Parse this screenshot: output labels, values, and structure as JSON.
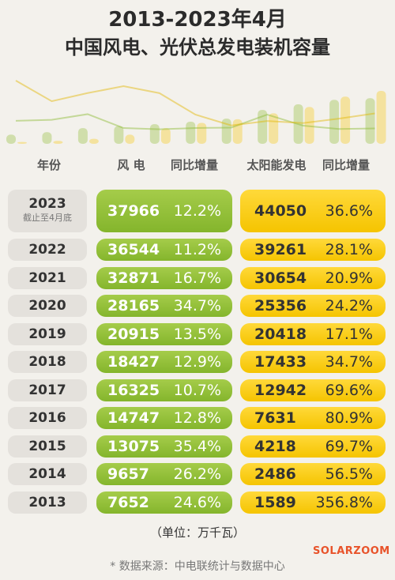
{
  "title_line1": "2013-2023年4月",
  "title_line2": "中国风电、光伏总发电装机容量",
  "headers": {
    "year": "年份",
    "wind": "风 电",
    "wind_yoy": "同比增量",
    "solar": "太阳能发电",
    "solar_yoy": "同比增量"
  },
  "unit": "（单位：万千瓦）",
  "brand": "SOLARZOOM",
  "source": "* 数据来源：中电联统计与数据中心",
  "colors": {
    "wind": "#8bbb34",
    "solar": "#f7c700",
    "year_box": "#e4e1dc",
    "background": "#f3f1ec"
  },
  "chart_data": {
    "type": "table",
    "columns": [
      "年份",
      "风 电",
      "同比增量",
      "太阳能发电",
      "同比增量"
    ],
    "rows": [
      {
        "year": "2023",
        "note": "截止至4月底",
        "wind": 37966,
        "wind_yoy": "12.2%",
        "solar": 44050,
        "solar_yoy": "36.6%"
      },
      {
        "year": "2022",
        "wind": 36544,
        "wind_yoy": "11.2%",
        "solar": 39261,
        "solar_yoy": "28.1%"
      },
      {
        "year": "2021",
        "wind": 32871,
        "wind_yoy": "16.7%",
        "solar": 30654,
        "solar_yoy": "20.9%"
      },
      {
        "year": "2020",
        "wind": 28165,
        "wind_yoy": "34.7%",
        "solar": 25356,
        "solar_yoy": "24.2%"
      },
      {
        "year": "2019",
        "wind": 20915,
        "wind_yoy": "13.5%",
        "solar": 20418,
        "solar_yoy": "17.1%"
      },
      {
        "year": "2018",
        "wind": 18427,
        "wind_yoy": "12.9%",
        "solar": 17433,
        "solar_yoy": "34.7%"
      },
      {
        "year": "2017",
        "wind": 16325,
        "wind_yoy": "10.7%",
        "solar": 12942,
        "solar_yoy": "69.6%"
      },
      {
        "year": "2016",
        "wind": 14747,
        "wind_yoy": "12.8%",
        "solar": 7631,
        "solar_yoy": "80.9%"
      },
      {
        "year": "2015",
        "wind": 13075,
        "wind_yoy": "35.4%",
        "solar": 4218,
        "solar_yoy": "69.7%"
      },
      {
        "year": "2014",
        "wind": 9657,
        "wind_yoy": "26.2%",
        "solar": 2486,
        "solar_yoy": "56.5%"
      },
      {
        "year": "2013",
        "wind": 7652,
        "wind_yoy": "24.6%",
        "solar": 1589,
        "solar_yoy": "356.8%"
      }
    ]
  }
}
